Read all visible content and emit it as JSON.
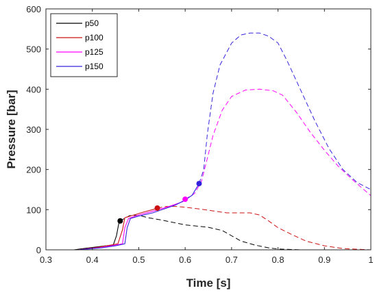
{
  "chart_data": {
    "type": "line",
    "title": "",
    "xlabel": "Time [s]",
    "ylabel": "Pressure [bar]",
    "xlim": [
      0.3,
      1.0
    ],
    "ylim": [
      0,
      600
    ],
    "xticks": [
      0.3,
      0.4,
      0.5,
      0.6,
      0.7,
      0.8,
      0.9,
      1
    ],
    "yticks": [
      0,
      100,
      200,
      300,
      400,
      500,
      600
    ],
    "xtick_labels": [
      "0.3",
      "0.4",
      "0.5",
      "0.6",
      "0.7",
      "0.8",
      "0.9",
      "1"
    ],
    "ytick_labels": [
      "0",
      "100",
      "200",
      "300",
      "400",
      "500",
      "600"
    ],
    "grid": false,
    "legend_position": "top-left",
    "series": [
      {
        "name": "p50",
        "color": "#000000",
        "solid": [
          [
            0.3,
            0
          ],
          [
            0.36,
            0
          ],
          [
            0.4,
            6
          ],
          [
            0.43,
            10
          ],
          [
            0.445,
            12
          ],
          [
            0.452,
            35
          ],
          [
            0.458,
            72
          ]
        ],
        "marker": [
          0.46,
          72
        ],
        "dashed": [
          [
            0.46,
            72
          ],
          [
            0.48,
            85
          ],
          [
            0.5,
            86
          ],
          [
            0.52,
            80
          ],
          [
            0.55,
            74
          ],
          [
            0.6,
            62
          ],
          [
            0.65,
            56
          ],
          [
            0.68,
            48
          ],
          [
            0.7,
            35
          ],
          [
            0.72,
            22
          ],
          [
            0.75,
            12
          ],
          [
            0.78,
            5
          ],
          [
            0.8,
            2
          ],
          [
            0.85,
            0
          ],
          [
            1.0,
            0
          ]
        ]
      },
      {
        "name": "p100",
        "color": "#cc1111",
        "solid": [
          [
            0.3,
            0
          ],
          [
            0.37,
            0
          ],
          [
            0.41,
            6
          ],
          [
            0.44,
            12
          ],
          [
            0.455,
            15
          ],
          [
            0.465,
            50
          ],
          [
            0.47,
            80
          ],
          [
            0.49,
            87
          ],
          [
            0.51,
            94
          ],
          [
            0.53,
            100
          ],
          [
            0.54,
            104
          ]
        ],
        "marker": [
          0.54,
          104
        ],
        "dashed": [
          [
            0.54,
            104
          ],
          [
            0.56,
            108
          ],
          [
            0.58,
            108
          ],
          [
            0.6,
            106
          ],
          [
            0.63,
            102
          ],
          [
            0.66,
            97
          ],
          [
            0.69,
            92
          ],
          [
            0.72,
            92
          ],
          [
            0.74,
            92
          ],
          [
            0.76,
            87
          ],
          [
            0.78,
            72
          ],
          [
            0.8,
            55
          ],
          [
            0.83,
            38
          ],
          [
            0.86,
            22
          ],
          [
            0.9,
            10
          ],
          [
            0.94,
            3
          ],
          [
            1.0,
            0
          ]
        ]
      },
      {
        "name": "p125",
        "color": "#ff00ff",
        "solid": [
          [
            0.3,
            0
          ],
          [
            0.37,
            0
          ],
          [
            0.42,
            6
          ],
          [
            0.45,
            12
          ],
          [
            0.465,
            15
          ],
          [
            0.47,
            55
          ],
          [
            0.478,
            78
          ],
          [
            0.5,
            87
          ],
          [
            0.53,
            96
          ],
          [
            0.56,
            106
          ],
          [
            0.58,
            114
          ],
          [
            0.595,
            120
          ],
          [
            0.6,
            126
          ]
        ],
        "marker": [
          0.6,
          126
        ],
        "dashed": [
          [
            0.6,
            126
          ],
          [
            0.62,
            140
          ],
          [
            0.635,
            170
          ],
          [
            0.645,
            215
          ],
          [
            0.66,
            285
          ],
          [
            0.68,
            348
          ],
          [
            0.7,
            382
          ],
          [
            0.73,
            398
          ],
          [
            0.76,
            400
          ],
          [
            0.79,
            396
          ],
          [
            0.81,
            385
          ],
          [
            0.84,
            342
          ],
          [
            0.87,
            292
          ],
          [
            0.9,
            248
          ],
          [
            0.93,
            208
          ],
          [
            0.96,
            175
          ],
          [
            0.98,
            155
          ],
          [
            1.0,
            135
          ]
        ]
      },
      {
        "name": "p150",
        "color": "#3322dd",
        "solid": [
          [
            0.3,
            0
          ],
          [
            0.37,
            0
          ],
          [
            0.42,
            5
          ],
          [
            0.45,
            10
          ],
          [
            0.47,
            15
          ],
          [
            0.475,
            55
          ],
          [
            0.482,
            78
          ],
          [
            0.5,
            84
          ],
          [
            0.53,
            92
          ],
          [
            0.56,
            104
          ],
          [
            0.58,
            112
          ],
          [
            0.6,
            124
          ],
          [
            0.615,
            136
          ],
          [
            0.63,
            165
          ]
        ],
        "marker": [
          0.63,
          165
        ],
        "dashed": [
          [
            0.63,
            165
          ],
          [
            0.64,
            200
          ],
          [
            0.648,
            290
          ],
          [
            0.66,
            390
          ],
          [
            0.675,
            460
          ],
          [
            0.7,
            515
          ],
          [
            0.72,
            535
          ],
          [
            0.74,
            540
          ],
          [
            0.76,
            540
          ],
          [
            0.78,
            532
          ],
          [
            0.8,
            515
          ],
          [
            0.82,
            470
          ],
          [
            0.85,
            395
          ],
          [
            0.88,
            320
          ],
          [
            0.91,
            252
          ],
          [
            0.94,
            200
          ],
          [
            0.97,
            168
          ],
          [
            1.0,
            150
          ]
        ]
      }
    ]
  }
}
